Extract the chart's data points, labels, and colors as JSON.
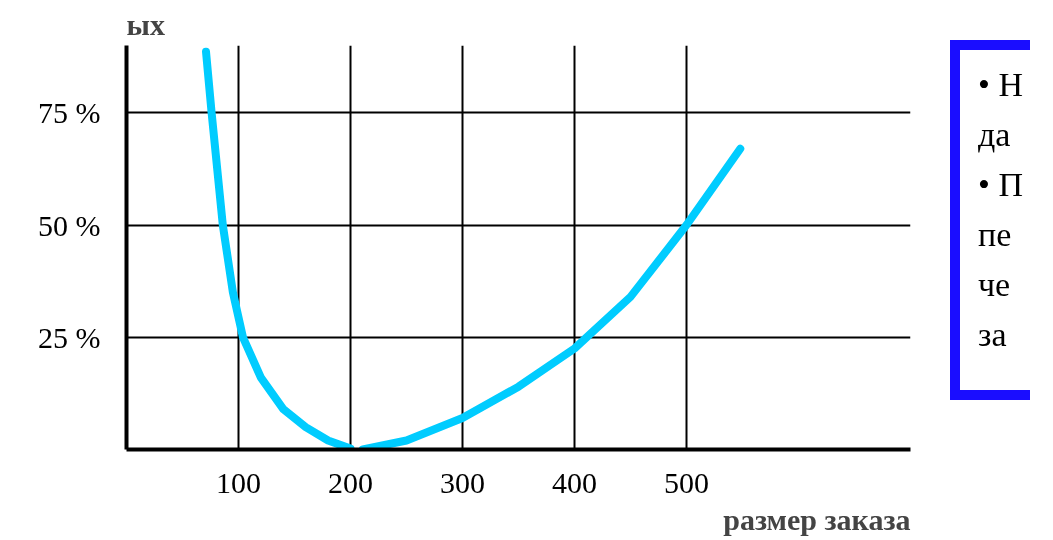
{
  "chart_data": {
    "type": "line",
    "ylabel": "ых",
    "xlabel": "размер заказа",
    "x": [
      71,
      76,
      86,
      95,
      104,
      120,
      140,
      160,
      180,
      200,
      205,
      211,
      250,
      300,
      350,
      400,
      450,
      500,
      548
    ],
    "series": [
      {
        "color": "#00ccff",
        "values": [
          88.6,
          75,
          50,
          35,
          25,
          16,
          9,
          5,
          2,
          0.2,
          null,
          0,
          2,
          7,
          14,
          22.5,
          34,
          50,
          67
        ]
      }
    ],
    "xlim": [
      0,
      700
    ],
    "xticks": [
      100,
      200,
      300,
      400,
      500
    ],
    "ylim": [
      0,
      90
    ],
    "yticks": [
      {
        "value": 25,
        "label": "25 %"
      },
      {
        "value": 50,
        "label": "50 %"
      },
      {
        "value": 75,
        "label": "75 %"
      }
    ],
    "grid": true,
    "marker": "none",
    "line_style": "solid",
    "annotations": [
      "• Н",
      "да",
      "• П",
      "пе",
      "че",
      "за"
    ]
  }
}
